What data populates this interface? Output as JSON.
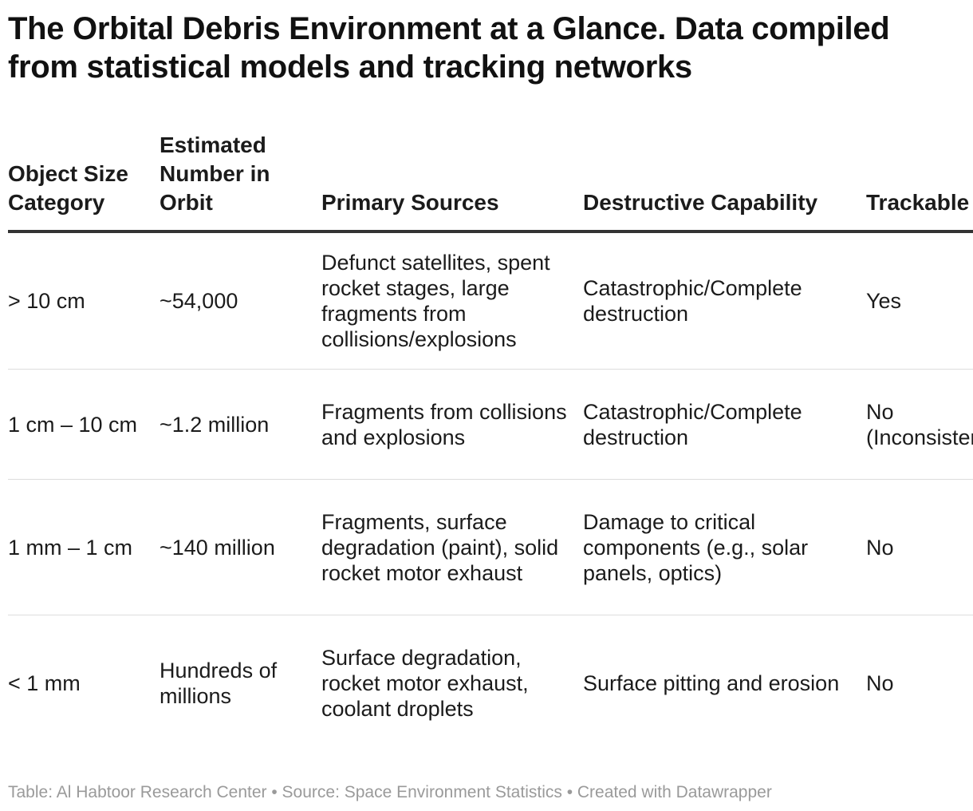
{
  "title": "The Orbital Debris Environment at a Glance. Data compiled from statistical models and tracking networks",
  "table": {
    "headers": [
      "Object Size Category",
      "Estimated Number in Orbit",
      "Primary Sources",
      "Destructive Capability",
      "Trackable"
    ],
    "rows": [
      [
        "> 10 cm",
        "~54,000",
        "Defunct satellites, spent rocket stages, large fragments from collisions/explosions",
        "Catastrophic/Complete destruction",
        "Yes"
      ],
      [
        "1 cm – 10 cm",
        "~1.2 million",
        "Fragments from collisions and explosions",
        "Catastrophic/Complete destruction",
        "No (Inconsistent)"
      ],
      [
        "1 mm – 1 cm",
        "~140 million",
        "Fragments, surface degradation (paint), solid rocket motor exhaust",
        "Damage to critical components (e.g., solar panels, optics)",
        "No"
      ],
      [
        "< 1 mm",
        "Hundreds of millions",
        "Surface degradation, rocket motor exhaust, coolant droplets",
        "Surface pitting and erosion",
        "No"
      ]
    ]
  },
  "footer": "Table: Al Habtoor Research Center • Source: Space Environment Statistics • Created with Datawrapper"
}
